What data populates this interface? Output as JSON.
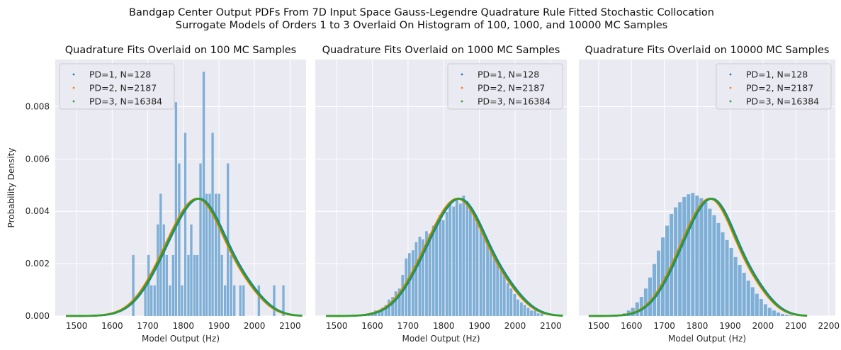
{
  "figure": {
    "suptitle_line1": "Bandgap Center Output PDFs From 7D Input Space Gauss-Legendre Quadrature Rule Fitted Stochastic Collocation",
    "suptitle_line2": "Surrogate Models of Orders 1 to 3 Overlaid On Histogram of 100, 1000, and 10000 MC Samples"
  },
  "colors": {
    "background": "#eaeaf2",
    "grid": "#ffffff",
    "histogram": "#7eafd6",
    "pd1": "#1f77b4",
    "pd2": "#ff7f0e",
    "pd3": "#2ca02c"
  },
  "legend": {
    "entries": [
      "PD=1, N=128",
      "PD=2, N=2187",
      "PD=3, N=16384"
    ]
  },
  "chart_data": [
    {
      "type": "bar",
      "title": "Quadrature Fits Overlaid on 100 MC Samples",
      "xlabel": "Model Output (Hz)",
      "ylabel": "Probability Density",
      "xlim": [
        1440,
        2145
      ],
      "ylim": [
        0,
        0.0098
      ],
      "xticks": [
        "1500",
        "1600",
        "1700",
        "1800",
        "1900",
        "2000",
        "2100"
      ],
      "yticks": [
        "0.000",
        "0.002",
        "0.004",
        "0.006",
        "0.008"
      ],
      "legend_position": "top-left",
      "grid": true,
      "histogram_bin_width": 8.6,
      "histogram_bins": [
        [
          1656,
          0.00233
        ],
        [
          1690,
          0.00117
        ],
        [
          1699,
          0.00233
        ],
        [
          1707,
          0.00117
        ],
        [
          1716,
          0.00117
        ],
        [
          1725,
          0.0035
        ],
        [
          1733,
          0.00467
        ],
        [
          1742,
          0.0035
        ],
        [
          1750,
          0.00233
        ],
        [
          1759,
          0.00117
        ],
        [
          1768,
          0.00233
        ],
        [
          1776,
          0.00817
        ],
        [
          1785,
          0.00583
        ],
        [
          1793,
          0.00117
        ],
        [
          1802,
          0.007
        ],
        [
          1811,
          0.00233
        ],
        [
          1819,
          0.0035
        ],
        [
          1828,
          0.00233
        ],
        [
          1836,
          0.00233
        ],
        [
          1845,
          0.00583
        ],
        [
          1854,
          0.00933
        ],
        [
          1862,
          0.00467
        ],
        [
          1871,
          0.00467
        ],
        [
          1879,
          0.007
        ],
        [
          1888,
          0.00467
        ],
        [
          1897,
          0.00467
        ],
        [
          1905,
          0.00233
        ],
        [
          1914,
          0.00117
        ],
        [
          1922,
          0.00583
        ],
        [
          1931,
          0.00233
        ],
        [
          1940,
          0.00117
        ],
        [
          1957,
          0.00117
        ],
        [
          1966,
          0.00117
        ],
        [
          2009,
          0.00117
        ],
        [
          2052,
          0.00117
        ],
        [
          2078,
          0.00117
        ]
      ]
    },
    {
      "type": "bar",
      "title": "Quadrature Fits Overlaid on 1000 MC Samples",
      "xlabel": "Model Output (Hz)",
      "ylabel": "",
      "xlim": [
        1440,
        2145
      ],
      "ylim": [
        0,
        0.0098
      ],
      "xticks": [
        "1500",
        "1600",
        "1700",
        "1800",
        "1900",
        "2000",
        "2100"
      ],
      "yticks": [],
      "legend_position": "top-right",
      "grid": true,
      "histogram_bin_width": 9.5,
      "histogram_bins": [
        [
          1567,
          5e-05
        ],
        [
          1577,
          5e-05
        ],
        [
          1586,
          0.0001
        ],
        [
          1596,
          0.00015
        ],
        [
          1605,
          0.00021
        ],
        [
          1615,
          0.00021
        ],
        [
          1624,
          0.00031
        ],
        [
          1634,
          0.00042
        ],
        [
          1643,
          0.00063
        ],
        [
          1653,
          0.00073
        ],
        [
          1662,
          0.00094
        ],
        [
          1672,
          0.00105
        ],
        [
          1681,
          0.00157
        ],
        [
          1691,
          0.0022
        ],
        [
          1700,
          0.0024
        ],
        [
          1710,
          0.00251
        ],
        [
          1719,
          0.00282
        ],
        [
          1729,
          0.00303
        ],
        [
          1738,
          0.00293
        ],
        [
          1748,
          0.00324
        ],
        [
          1757,
          0.00314
        ],
        [
          1767,
          0.00345
        ],
        [
          1776,
          0.00356
        ],
        [
          1786,
          0.00387
        ],
        [
          1795,
          0.00366
        ],
        [
          1805,
          0.00398
        ],
        [
          1814,
          0.00429
        ],
        [
          1824,
          0.00418
        ],
        [
          1833,
          0.0045
        ],
        [
          1843,
          0.00429
        ],
        [
          1852,
          0.0046
        ],
        [
          1862,
          0.00439
        ],
        [
          1871,
          0.00408
        ],
        [
          1881,
          0.00387
        ],
        [
          1890,
          0.00356
        ],
        [
          1900,
          0.00345
        ],
        [
          1909,
          0.00314
        ],
        [
          1919,
          0.00282
        ],
        [
          1928,
          0.00251
        ],
        [
          1938,
          0.0023
        ],
        [
          1947,
          0.00209
        ],
        [
          1957,
          0.00178
        ],
        [
          1966,
          0.00157
        ],
        [
          1976,
          0.00126
        ],
        [
          1985,
          0.00105
        ],
        [
          1995,
          0.00084
        ],
        [
          2004,
          0.00063
        ],
        [
          2014,
          0.00052
        ],
        [
          2023,
          0.00042
        ],
        [
          2033,
          0.00031
        ],
        [
          2042,
          0.00021
        ],
        [
          2052,
          0.00021
        ],
        [
          2061,
          0.0001
        ],
        [
          2071,
          0.0001
        ]
      ]
    },
    {
      "type": "bar",
      "title": "Quadrature Fits Overlaid on 10000 MC Samples",
      "xlabel": "Model Output (Hz)",
      "ylabel": "",
      "xlim": [
        1440,
        2220
      ],
      "ylim": [
        0,
        0.0098
      ],
      "xticks": [
        "1500",
        "1600",
        "1700",
        "1800",
        "1900",
        "2000",
        "2100",
        "2200"
      ],
      "yticks": [],
      "legend_position": "top-right",
      "grid": true,
      "histogram_bin_width": 13,
      "histogram_bins": [
        [
          1560,
          5e-05
        ],
        [
          1573,
          0.0001
        ],
        [
          1586,
          0.00021
        ],
        [
          1599,
          0.00031
        ],
        [
          1612,
          0.00052
        ],
        [
          1625,
          0.00073
        ],
        [
          1638,
          0.00105
        ],
        [
          1651,
          0.00147
        ],
        [
          1664,
          0.00199
        ],
        [
          1677,
          0.0025
        ],
        [
          1690,
          0.003
        ],
        [
          1703,
          0.00345
        ],
        [
          1716,
          0.0039
        ],
        [
          1729,
          0.00415
        ],
        [
          1742,
          0.00435
        ],
        [
          1755,
          0.00455
        ],
        [
          1768,
          0.00465
        ],
        [
          1781,
          0.0047
        ],
        [
          1794,
          0.0046
        ],
        [
          1807,
          0.0045
        ],
        [
          1820,
          0.00435
        ],
        [
          1833,
          0.0041
        ],
        [
          1846,
          0.00385
        ],
        [
          1859,
          0.00355
        ],
        [
          1872,
          0.0032
        ],
        [
          1885,
          0.0029
        ],
        [
          1898,
          0.0026
        ],
        [
          1911,
          0.00225
        ],
        [
          1924,
          0.00195
        ],
        [
          1937,
          0.00165
        ],
        [
          1950,
          0.00135
        ],
        [
          1963,
          0.0011
        ],
        [
          1976,
          0.00085
        ],
        [
          1989,
          0.00065
        ],
        [
          2002,
          0.00045
        ],
        [
          2015,
          0.00031
        ],
        [
          2028,
          0.00021
        ],
        [
          2041,
          0.00013
        ],
        [
          2054,
          8e-05
        ],
        [
          2067,
          4e-05
        ],
        [
          2080,
          2e-05
        ]
      ]
    }
  ],
  "pdf_curves": {
    "x_range": [
      1470,
      2135
    ],
    "series": [
      {
        "name": "PD=1, N=128",
        "color": "#1f77b4",
        "shift": 3
      },
      {
        "name": "PD=2, N=2187",
        "color": "#ff7f0e",
        "shift": -3
      },
      {
        "name": "PD=3, N=16384",
        "color": "#2ca02c",
        "shift": 0
      }
    ],
    "components": [
      {
        "weight": 0.5,
        "mean": 1862,
        "sd": 62
      },
      {
        "weight": 0.38,
        "mean": 1775,
        "sd": 70
      },
      {
        "weight": 0.12,
        "mean": 1970,
        "sd": 55
      }
    ]
  }
}
